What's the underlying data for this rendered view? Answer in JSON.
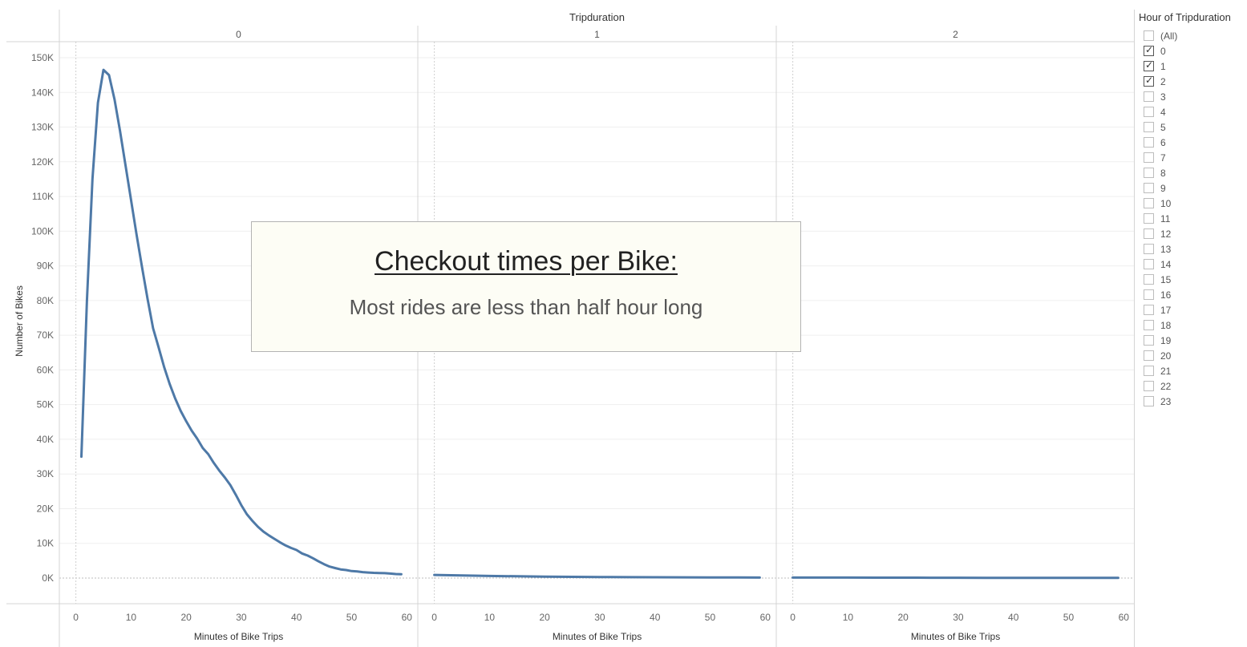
{
  "header": {
    "title": "Tripduration"
  },
  "annotation": {
    "title": "Checkout times per Bike:",
    "subtitle": "Most rides are less than half hour long"
  },
  "legend": {
    "title": "Hour of Tripduration",
    "items": [
      {
        "label": "(All)",
        "checked": false
      },
      {
        "label": "0",
        "checked": true
      },
      {
        "label": "1",
        "checked": true
      },
      {
        "label": "2",
        "checked": true
      },
      {
        "label": "3",
        "checked": false
      },
      {
        "label": "4",
        "checked": false
      },
      {
        "label": "5",
        "checked": false
      },
      {
        "label": "6",
        "checked": false
      },
      {
        "label": "7",
        "checked": false
      },
      {
        "label": "8",
        "checked": false
      },
      {
        "label": "9",
        "checked": false
      },
      {
        "label": "10",
        "checked": false
      },
      {
        "label": "11",
        "checked": false
      },
      {
        "label": "12",
        "checked": false
      },
      {
        "label": "13",
        "checked": false
      },
      {
        "label": "14",
        "checked": false
      },
      {
        "label": "15",
        "checked": false
      },
      {
        "label": "16",
        "checked": false
      },
      {
        "label": "17",
        "checked": false
      },
      {
        "label": "18",
        "checked": false
      },
      {
        "label": "19",
        "checked": false
      },
      {
        "label": "20",
        "checked": false
      },
      {
        "label": "21",
        "checked": false
      },
      {
        "label": "22",
        "checked": false
      },
      {
        "label": "23",
        "checked": false
      }
    ]
  },
  "chart_data": {
    "type": "line",
    "title": "Tripduration",
    "ylabel": "Number of Bikes",
    "xlabel": "Minutes of Bike Trips",
    "ylim": [
      0,
      150000
    ],
    "yticks": [
      0,
      10000,
      20000,
      30000,
      40000,
      50000,
      60000,
      70000,
      80000,
      90000,
      100000,
      110000,
      120000,
      130000,
      140000,
      150000
    ],
    "ytick_labels": [
      "0K",
      "10K",
      "20K",
      "30K",
      "40K",
      "50K",
      "60K",
      "70K",
      "80K",
      "90K",
      "100K",
      "110K",
      "120K",
      "130K",
      "140K",
      "150K"
    ],
    "xlim": [
      -3,
      62
    ],
    "xticks": [
      0,
      10,
      20,
      30,
      40,
      50,
      60
    ],
    "grid": true,
    "line_color": "#4e79a7",
    "facets": [
      {
        "label": "0",
        "x": [
          1,
          2,
          3,
          4,
          5,
          6,
          7,
          8,
          9,
          10,
          11,
          12,
          13,
          14,
          15,
          16,
          17,
          18,
          19,
          20,
          21,
          22,
          23,
          24,
          25,
          26,
          27,
          28,
          29,
          30,
          31,
          32,
          33,
          34,
          35,
          36,
          37,
          38,
          39,
          40,
          41,
          42,
          43,
          44,
          45,
          46,
          47,
          48,
          49,
          50,
          51,
          52,
          53,
          54,
          55,
          56,
          57,
          58,
          59
        ],
        "y": [
          35000,
          80000,
          115000,
          137000,
          146500,
          145000,
          138000,
          129000,
          119000,
          109000,
          99000,
          89500,
          80500,
          72000,
          66500,
          60800,
          56000,
          51800,
          48200,
          45200,
          42500,
          40200,
          37500,
          35700,
          33200,
          31000,
          29000,
          26800,
          24000,
          21000,
          18400,
          16500,
          14800,
          13400,
          12300,
          11300,
          10300,
          9400,
          8700,
          8100,
          7100,
          6500,
          5700,
          4800,
          4000,
          3300,
          2900,
          2500,
          2300,
          2000,
          1900,
          1700,
          1600,
          1500,
          1450,
          1400,
          1300,
          1150,
          1100
        ]
      },
      {
        "label": "1",
        "x": [
          0,
          5,
          10,
          15,
          20,
          25,
          30,
          35,
          40,
          45,
          50,
          55,
          59
        ],
        "y": [
          900,
          750,
          600,
          500,
          400,
          350,
          300,
          250,
          220,
          200,
          180,
          160,
          150
        ]
      },
      {
        "label": "2",
        "x": [
          0,
          5,
          10,
          15,
          20,
          25,
          30,
          35,
          40,
          45,
          50,
          55,
          59
        ],
        "y": [
          150,
          140,
          130,
          120,
          110,
          100,
          90,
          80,
          75,
          70,
          65,
          60,
          55
        ]
      }
    ]
  }
}
